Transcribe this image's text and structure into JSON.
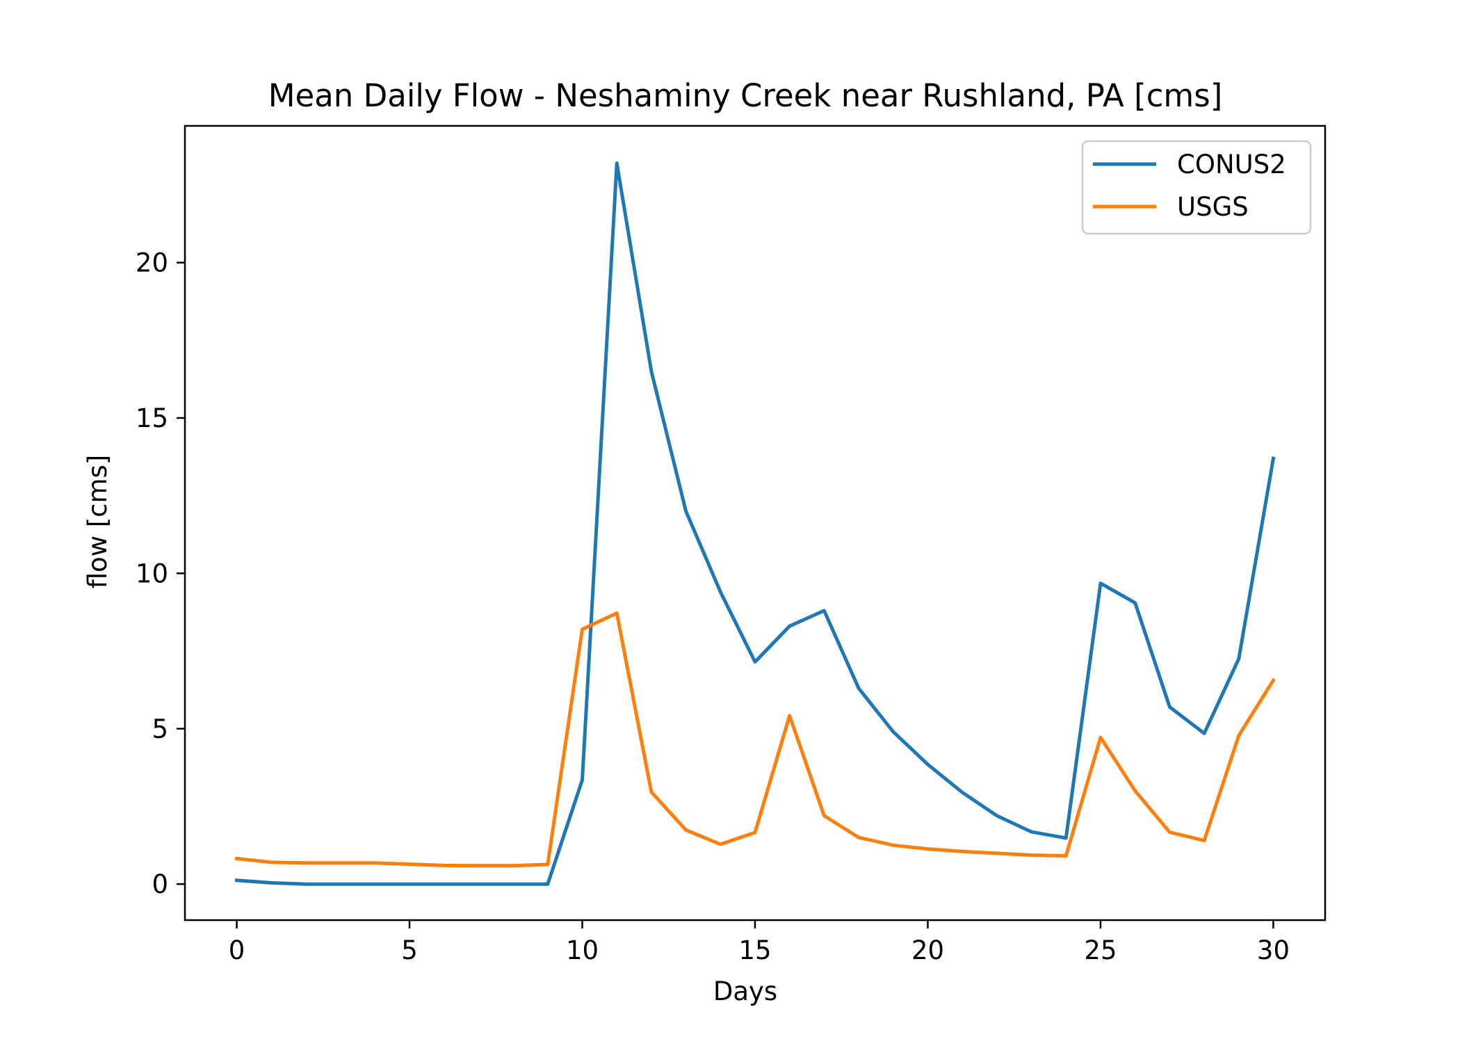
{
  "chart_data": {
    "type": "line",
    "title": "Mean Daily Flow - Neshaminy Creek near Rushland, PA [cms]",
    "xlabel": "Days",
    "ylabel": "flow [cms]",
    "xlim": [
      -1.5,
      31.5
    ],
    "ylim": [
      -1.16,
      24.4
    ],
    "xticks": [
      0,
      5,
      10,
      15,
      20,
      25,
      30
    ],
    "yticks": [
      0,
      5,
      10,
      15,
      20
    ],
    "grid": false,
    "legend_position": "top-right",
    "x": [
      0,
      1,
      2,
      3,
      4,
      5,
      6,
      7,
      8,
      9,
      10,
      11,
      12,
      13,
      14,
      15,
      16,
      17,
      18,
      19,
      20,
      21,
      22,
      23,
      24,
      25,
      26,
      27,
      28,
      29,
      30
    ],
    "series": [
      {
        "name": "CONUS2",
        "color": "#1f77b4",
        "values": [
          0.12,
          0.04,
          0.0,
          0.0,
          0.0,
          0.0,
          0.0,
          0.0,
          0.0,
          0.0,
          3.35,
          23.2,
          16.5,
          12.0,
          9.4,
          7.15,
          8.3,
          8.8,
          6.3,
          4.9,
          3.85,
          2.95,
          2.2,
          1.68,
          1.48,
          9.68,
          9.05,
          5.7,
          4.85,
          7.25,
          13.7
        ]
      },
      {
        "name": "USGS",
        "color": "#ff7f0e",
        "values": [
          0.82,
          0.7,
          0.68,
          0.68,
          0.68,
          0.64,
          0.6,
          0.59,
          0.59,
          0.63,
          8.2,
          8.72,
          2.96,
          1.74,
          1.28,
          1.66,
          5.42,
          2.2,
          1.5,
          1.25,
          1.13,
          1.05,
          0.99,
          0.93,
          0.91,
          4.72,
          3.0,
          1.67,
          1.4,
          4.78,
          6.56
        ]
      }
    ]
  }
}
